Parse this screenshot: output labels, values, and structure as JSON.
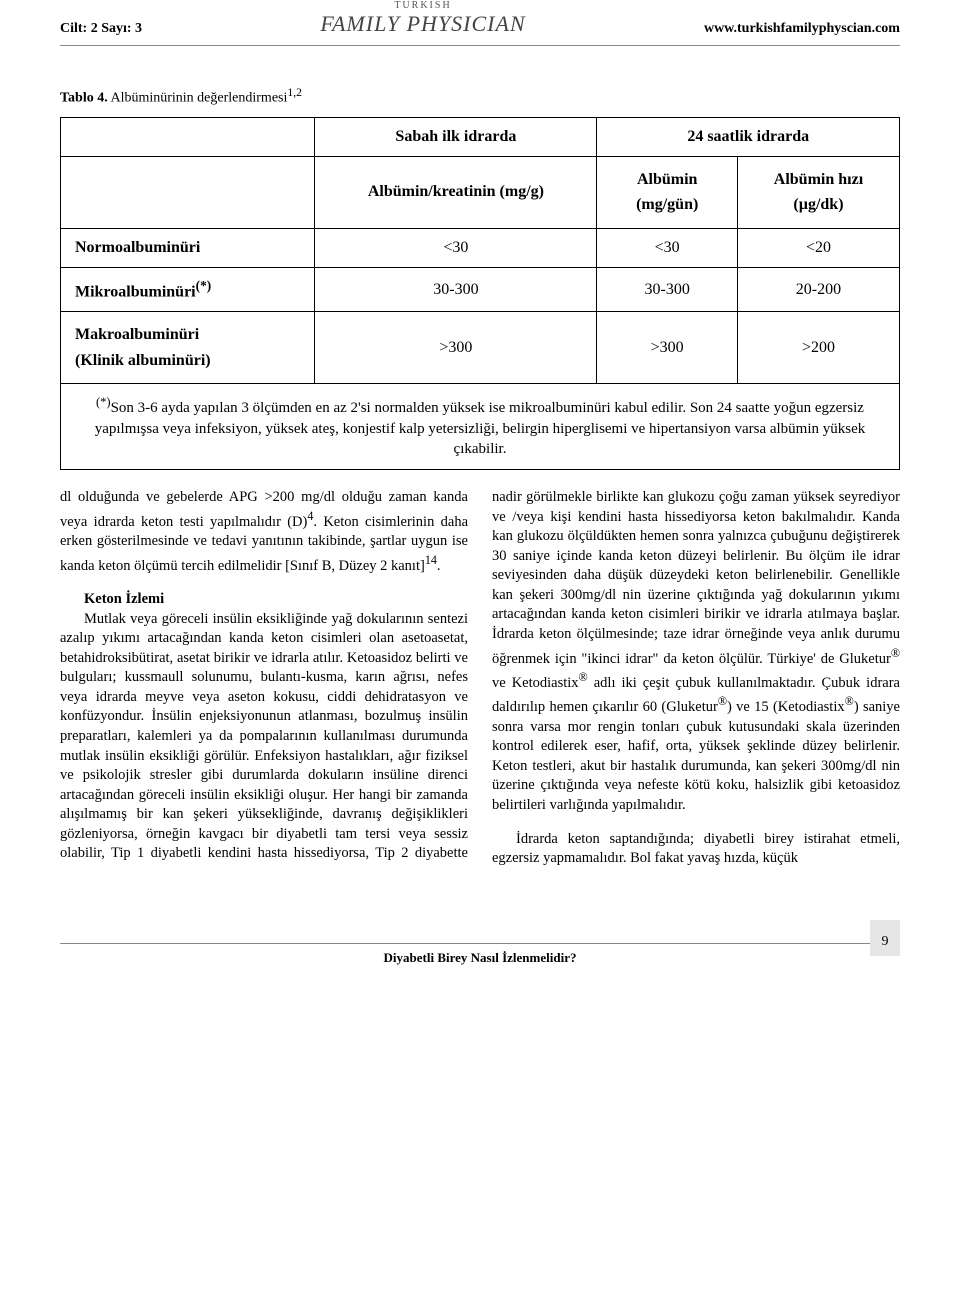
{
  "header": {
    "left": "Cilt: 2 Sayı: 3",
    "right": "www.turkishfamilyphyscian.com",
    "logo_small": "TURKISH",
    "logo_main": "FAMILY PHYSICIAN"
  },
  "table": {
    "caption_bold": "Tablo 4.",
    "caption_rest": " Albüminürinin değerlendirmesi",
    "caption_sup": "1,2",
    "header_col1": "Sabah ilk idrarda",
    "header_col2": "24 saatlik idrarda",
    "sub_col1": "Albümin/kreatinin (mg/g)",
    "sub_col2_a": "Albümin",
    "sub_col2_b": "(mg/gün)",
    "sub_col3_a": "Albümin hızı",
    "sub_col3_b": "(µg/dk)",
    "rows": [
      {
        "label": "Normoalbuminüri",
        "c1": "<30",
        "c2": "<30",
        "c3": "<20"
      },
      {
        "label_html": "Mikroalbuminüri<sup>(*)</sup>",
        "c1": "30-300",
        "c2": "30-300",
        "c3": "20-200"
      },
      {
        "label_html": "Makroalbuminüri<br>(Klinik albuminüri)",
        "c1": ">300",
        "c2": ">300",
        "c3": ">200"
      }
    ],
    "footnote_html": "<sup>(*)</sup>Son 3-6 ayda yapılan 3 ölçümden en az 2'si normalden yüksek ise mikroalbuminüri kabul edilir. Son 24 saatte yoğun egzersiz yapılmışsa veya infeksiyon, yüksek ateş, konjestif kalp yetersizliği, belirgin hiperglisemi ve hipertansiyon varsa albümin yüksek çıkabilir."
  },
  "body": {
    "p1_html": "dl olduğunda ve gebelerde APG >200 mg/dl olduğu zaman kanda veya idrarda keton testi yapılmalıdır (D)<sup>4</sup>. Keton cisimlerinin daha erken gösterilmesinde ve tedavi yanıtının takibinde, şartlar uygun ise kanda keton ölçümü tercih edilmelidir [Sınıf B, Düzey 2 kanıt]<sup>14</sup>.",
    "section_head": "Keton İzlemi",
    "p2_html": "Mutlak veya göreceli insülin eksikliğinde yağ dokularının sentezi azalıp yıkımı artacağından kanda keton cisimleri olan asetoasetat, betahidroksibütirat, asetat birikir ve idrarla atılır. Ketoasidoz belirti ve bulguları; kussmaull solunumu, bulantı-kusma, karın ağrısı, nefes veya idrarda meyve veya aseton kokusu, ciddi dehidratasyon ve konfüzyondur. İnsülin enjeksiyonunun atlanması, bozulmuş insülin preparatları, kalemleri ya da pompalarının kullanılması durumunda mutlak insülin eksikliği görülür. Enfeksiyon hastalıkları, ağır fiziksel ve psikolojik stresler gibi durumlarda dokuların insüline direnci artacağından göreceli insülin eksikliği oluşur. Her hangi bir zamanda alışılmamış bir kan şekeri yüksekliğinde, davranış değişiklikleri gözleniyorsa, örneğin kavgacı bir diyabetli tam tersi veya sessiz olabilir, Tip 1 diyabetli kendini hasta hissediyorsa, Tip 2 diyabette nadir görülmekle birlikte kan glukozu çoğu zaman yüksek seyrediyor ve /veya kişi kendini hasta hissediyorsa keton bakılmalıdır. Kanda kan glukozu ölçüldükten hemen sonra yalnızca çubuğunu değiştirerek 30 saniye içinde kanda keton düzeyi belirlenir. Bu ölçüm ile idrar seviyesinden daha düşük düzeydeki keton belirlenebilir. Genellikle kan şekeri 300mg/dl nin üzerine çıktığında yağ dokularının yıkımı artacağından kanda keton cisimleri birikir ve idrarla atılmaya başlar. İdrarda keton ölçülmesinde; taze idrar örneğinde veya anlık durumu öğrenmek için \"ikinci idrar\" da keton ölçülür. Türkiye' de Gluketur<sup>®</sup> ve Ketodiastix<sup>®</sup> adlı iki çeşit çubuk kullanılmaktadır. Çubuk idrara daldırılıp hemen çıkarılır 60 (Gluketur<sup>®</sup>) ve 15 (Ketodiastix<sup>®</sup>) saniye sonra varsa mor rengin tonları çubuk kutusundaki skala üzerinden kontrol edilerek eser, hafif, orta, yüksek şeklinde düzey belirlenir. Keton testleri, akut bir hastalık durumunda, kan şekeri 300mg/dl nin üzerine çıktığında veya nefeste kötü koku, halsizlik gibi ketoasidoz belirtileri varlığında yapılmalıdır.",
    "p3_html": "İdrarda keton saptandığında; diyabetli birey istirahat etmeli, egzersiz yapmamalıdır. Bol fakat yavaş hızda, küçük"
  },
  "footer": {
    "title": "Diyabetli Birey Nasıl İzlenmelidir?",
    "page": "9"
  }
}
